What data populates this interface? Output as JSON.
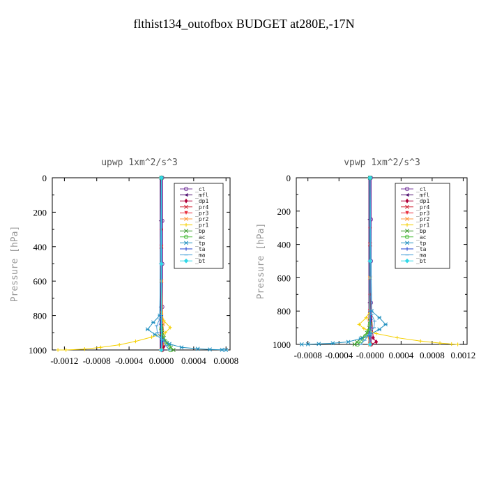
{
  "page_title": "flthist134_outofbox  BUDGET at280E,-17N",
  "colors": {
    "_cl": "#7b3fa0",
    "_mfl": "#5a1e78",
    "_dp1": "#b0003a",
    "_pr4": "#d02030",
    "_pr3": "#e83040",
    "_pr2": "#ff9a40",
    "_pr1": "#f5d000",
    "_bp": "#3a9a2a",
    "_ac": "#50c040",
    "_tp": "#2090c0",
    "_ta": "#2040d0",
    "_ma": "#4aa0d8",
    "_bt": "#30d8e8"
  },
  "chart_data": [
    {
      "type": "line",
      "title": "upwp   1xm^2/s^3",
      "ylabel": "Pressure [hPa]",
      "xlabel": "",
      "xlim": [
        -0.00135,
        0.00085
      ],
      "ylim": [
        1000,
        0
      ],
      "y_inverted": true,
      "grid": false,
      "legend_position": "top-right",
      "xticks": [
        "-0.0012",
        "-0.0008",
        "-0.0004",
        "0.0000",
        "0.0004",
        "0.0008"
      ],
      "xtick_values": [
        -0.0012,
        -0.0008,
        -0.0004,
        0.0,
        0.0004,
        0.0008
      ],
      "yticks": [
        "0",
        "200",
        "400",
        "600",
        "800",
        "1000"
      ],
      "ytick_values": [
        0,
        200,
        400,
        600,
        800,
        1000
      ],
      "series": [
        {
          "name": "_cl",
          "marker": "o",
          "x": [
            1e-05,
            1e-05,
            1e-05,
            1e-05,
            1e-05
          ],
          "y": [
            0,
            250,
            500,
            750,
            1000
          ]
        },
        {
          "name": "_mfl",
          "marker": "<",
          "x": [
            -1e-05,
            -1e-05,
            -1e-05,
            -1e-05,
            -1e-05
          ],
          "y": [
            0,
            250,
            500,
            750,
            1000
          ]
        },
        {
          "name": "_dp1",
          "marker": "d",
          "x": [
            0,
            0,
            0,
            0,
            3e-05,
            1e-05
          ],
          "y": [
            0,
            300,
            600,
            900,
            980,
            1000
          ]
        },
        {
          "name": "_pr4",
          "marker": "x",
          "x": [
            0,
            0,
            0,
            0
          ],
          "y": [
            0,
            400,
            800,
            1000
          ]
        },
        {
          "name": "_pr3",
          "marker": "v",
          "x": [
            0,
            0,
            0,
            0
          ],
          "y": [
            0,
            400,
            800,
            1000
          ]
        },
        {
          "name": "_pr2",
          "marker": "*",
          "x": [
            0,
            0,
            2e-05,
            4e-05,
            0
          ],
          "y": [
            0,
            600,
            850,
            950,
            1000
          ]
        },
        {
          "name": "_pr1",
          "marker": "+",
          "x": [
            0,
            0,
            3e-05,
            0.00011,
            5e-05,
            -0.00012,
            -0.00032,
            -0.00052,
            -0.00075,
            -0.00095,
            -0.00118,
            -0.00128
          ],
          "y": [
            0,
            780,
            830,
            870,
            900,
            925,
            950,
            970,
            985,
            995,
            1000,
            1000
          ]
        },
        {
          "name": "_bp",
          "marker": "x",
          "x": [
            0,
            0,
            1e-05,
            3e-05,
            7e-05,
            0.00012,
            0.00015
          ],
          "y": [
            0,
            860,
            900,
            930,
            960,
            985,
            1000
          ]
        },
        {
          "name": "_ac",
          "marker": "o",
          "x": [
            0,
            0,
            2e-05,
            5e-05,
            9e-05,
            0.00011
          ],
          "y": [
            0,
            880,
            920,
            950,
            980,
            1000
          ]
        },
        {
          "name": "_tp",
          "marker": "*",
          "x": [
            0,
            -2e-05,
            -0.0001,
            -0.00017,
            -8e-05,
            2e-05,
            0.0001,
            0.00025,
            0.00045,
            0.0006,
            0.00075,
            0.0008
          ],
          "y": [
            0,
            800,
            840,
            880,
            910,
            940,
            965,
            985,
            993,
            997,
            999,
            1000
          ]
        },
        {
          "name": "_ta",
          "marker": "+",
          "x": [
            0,
            0,
            -1e-05,
            0,
            1e-05,
            0
          ],
          "y": [
            0,
            800,
            850,
            900,
            950,
            1000
          ]
        },
        {
          "name": "_ma",
          "marker": "-",
          "x": [
            0,
            -2e-05,
            -6e-05,
            -5e-05,
            1e-05,
            6e-05,
            0.0001
          ],
          "y": [
            0,
            820,
            860,
            900,
            940,
            975,
            1000
          ]
        },
        {
          "name": "_bt",
          "marker": "D",
          "x": [
            0,
            0,
            0
          ],
          "y": [
            0,
            500,
            1000
          ]
        }
      ]
    },
    {
      "type": "line",
      "title": "vpwp   1xm^2/s^3",
      "ylabel": "Pressure [hPa]",
      "xlabel": "",
      "xlim": [
        -0.00095,
        0.00125
      ],
      "ylim": [
        1000,
        0
      ],
      "y_inverted": true,
      "grid": false,
      "legend_position": "top-right",
      "xticks": [
        "-0.0008",
        "-0.0004",
        "-0.0000",
        "0.0004",
        "0.0008",
        "0.0012"
      ],
      "xtick_values": [
        -0.0008,
        -0.0004,
        0.0,
        0.0004,
        0.0008,
        0.0012
      ],
      "yticks": [
        "0",
        "200",
        "400",
        "600",
        "800",
        "1000"
      ],
      "ytick_values": [
        0,
        200,
        400,
        600,
        800,
        1000
      ],
      "series": [
        {
          "name": "_cl",
          "marker": "o",
          "x": [
            1e-05,
            1e-05,
            1e-05,
            1e-05,
            1e-05
          ],
          "y": [
            0,
            250,
            500,
            750,
            1000
          ]
        },
        {
          "name": "_mfl",
          "marker": "<",
          "x": [
            -1e-05,
            -1e-05,
            -1e-05,
            -1e-05,
            -1e-05
          ],
          "y": [
            0,
            250,
            500,
            750,
            1000
          ]
        },
        {
          "name": "_dp1",
          "marker": "d",
          "x": [
            0,
            0,
            0,
            4e-05,
            8e-05,
            2e-05
          ],
          "y": [
            0,
            300,
            700,
            960,
            985,
            1000
          ]
        },
        {
          "name": "_pr4",
          "marker": "x",
          "x": [
            0,
            0,
            0,
            0
          ],
          "y": [
            0,
            400,
            800,
            1000
          ]
        },
        {
          "name": "_pr3",
          "marker": "v",
          "x": [
            0,
            0,
            0,
            0
          ],
          "y": [
            0,
            400,
            800,
            1000
          ]
        },
        {
          "name": "_pr2",
          "marker": "*",
          "x": [
            0,
            0,
            -1e-05,
            -3e-05,
            0
          ],
          "y": [
            0,
            600,
            850,
            950,
            1000
          ]
        },
        {
          "name": "_pr1",
          "marker": "+",
          "x": [
            0,
            0,
            -5e-05,
            -0.00014,
            -8e-05,
            8e-05,
            0.00035,
            0.00065,
            0.0009,
            0.00105,
            0.00113
          ],
          "y": [
            0,
            800,
            840,
            880,
            905,
            935,
            960,
            980,
            992,
            998,
            1000
          ]
        },
        {
          "name": "_bp",
          "marker": "x",
          "x": [
            0,
            0,
            -1e-05,
            -4e-05,
            -0.0001,
            -0.00017,
            -0.0002
          ],
          "y": [
            0,
            860,
            900,
            930,
            960,
            985,
            1000
          ]
        },
        {
          "name": "_ac",
          "marker": "o",
          "x": [
            0,
            0,
            -2e-05,
            -6e-05,
            -0.00012,
            -0.00016
          ],
          "y": [
            0,
            880,
            920,
            950,
            980,
            1000
          ]
        },
        {
          "name": "_tp",
          "marker": "*",
          "x": [
            0,
            2e-05,
            0.00012,
            0.0002,
            0.00012,
            0,
            -0.00012,
            -0.00028,
            -0.00048,
            -0.00066,
            -0.0008,
            -0.00088
          ],
          "y": [
            0,
            800,
            840,
            880,
            910,
            940,
            965,
            985,
            993,
            997,
            999,
            1000
          ]
        },
        {
          "name": "_ta",
          "marker": "+",
          "x": [
            0,
            0,
            1e-05,
            0,
            -1e-05,
            0
          ],
          "y": [
            0,
            800,
            850,
            900,
            950,
            1000
          ]
        },
        {
          "name": "_ma",
          "marker": "-",
          "x": [
            0,
            2e-05,
            6e-05,
            5e-05,
            -1e-05,
            -7e-05,
            -0.00012
          ],
          "y": [
            0,
            820,
            860,
            900,
            940,
            975,
            1000
          ]
        },
        {
          "name": "_bt",
          "marker": "D",
          "x": [
            0,
            0,
            0
          ],
          "y": [
            0,
            500,
            1000
          ]
        }
      ]
    }
  ]
}
